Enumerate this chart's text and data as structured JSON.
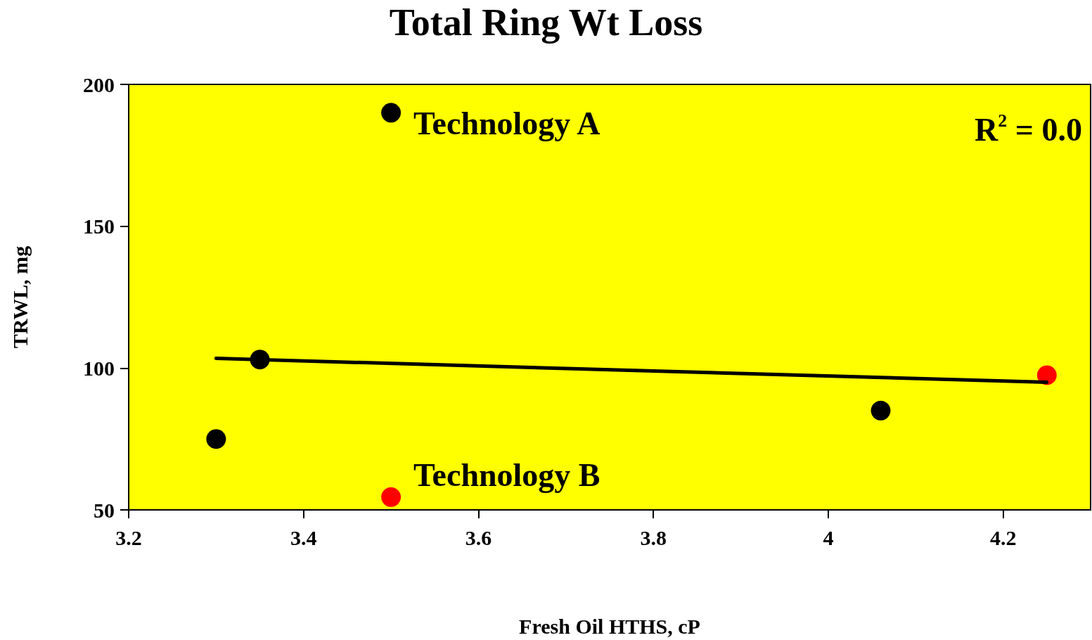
{
  "chart_data": {
    "type": "scatter",
    "title": "Total Ring Wt Loss",
    "xlabel": "Fresh Oil HTHS, cP",
    "ylabel": "TRWL, mg",
    "xlim": [
      3.2,
      4.3
    ],
    "xticks": [
      3.2,
      3.4,
      3.6,
      3.8,
      4,
      4.2
    ],
    "ylim": [
      50,
      200
    ],
    "yticks": [
      50,
      100,
      150,
      200
    ],
    "grid": false,
    "marker": "circle",
    "series": [
      {
        "color": "#000000",
        "x": [
          3.3,
          3.35,
          3.5,
          4.06
        ],
        "values": [
          75,
          103,
          190,
          85
        ]
      },
      {
        "color": "#ff0000",
        "x": [
          3.5,
          4.25
        ],
        "values": [
          54.5,
          97.5
        ]
      },
      {
        "type": "line",
        "color": "#000000",
        "marker": "none",
        "x": [
          3.3,
          4.25
        ],
        "values": [
          103.4,
          95
        ]
      }
    ],
    "annotations": [
      {
        "text": "Technology A",
        "x": 3.5,
        "y": 190
      },
      {
        "text": "Technology B",
        "x": 3.5,
        "y": 54.5
      },
      "R$^{2}$ = 0.0"
    ]
  }
}
